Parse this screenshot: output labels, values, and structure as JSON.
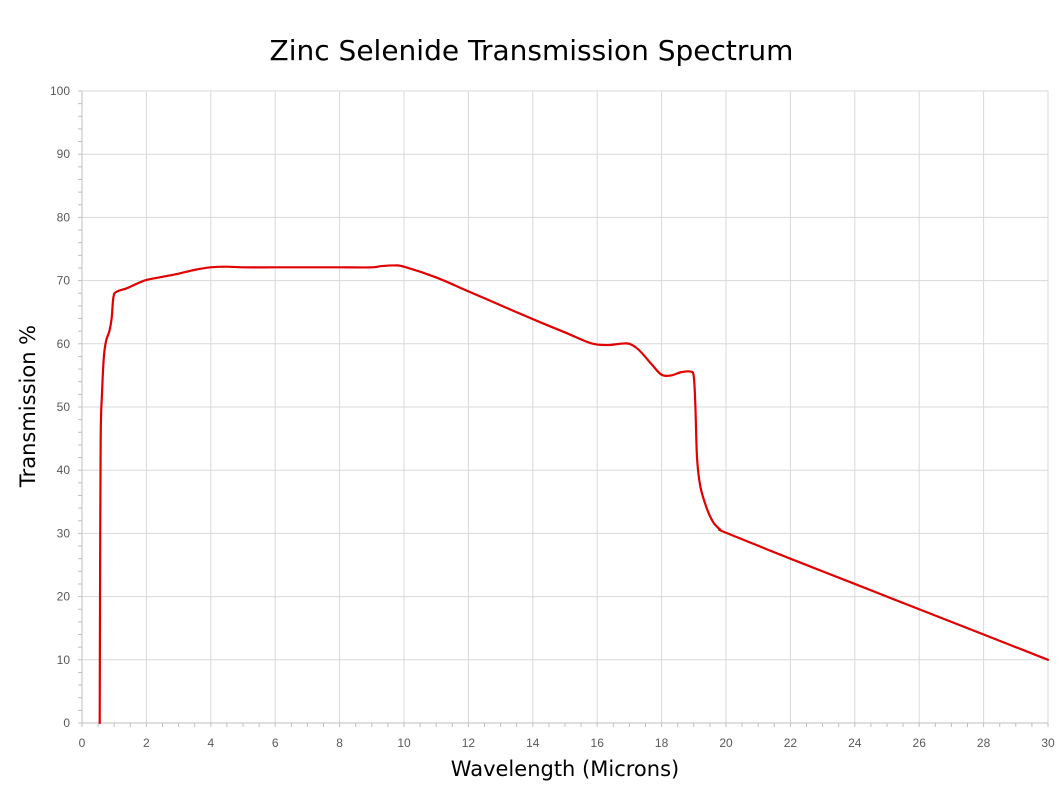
{
  "chart_data": {
    "type": "line",
    "title": "Zinc Selenide Transmission Spectrum",
    "xlabel": "Wavelength (Microns)",
    "ylabel": "Transmission %",
    "xlim": [
      0,
      30
    ],
    "ylim": [
      0,
      100
    ],
    "x_ticks": [
      "0",
      "2",
      "4",
      "6",
      "8",
      "10",
      "12",
      "14",
      "16",
      "18",
      "20",
      "22",
      "24",
      "26",
      "28",
      "30"
    ],
    "y_ticks": [
      "0",
      "10",
      "20",
      "30",
      "40",
      "50",
      "60",
      "70",
      "80",
      "90",
      "100"
    ],
    "grid": true,
    "legend": "none",
    "series": [
      {
        "color": "#e00000",
        "points": [
          [
            0.55,
            0
          ],
          [
            0.56,
            20
          ],
          [
            0.58,
            45
          ],
          [
            0.62,
            52
          ],
          [
            0.68,
            58
          ],
          [
            0.75,
            60.5
          ],
          [
            0.85,
            62
          ],
          [
            0.92,
            64
          ],
          [
            0.98,
            67.5
          ],
          [
            1.1,
            68.3
          ],
          [
            1.4,
            68.8
          ],
          [
            1.7,
            69.5
          ],
          [
            2.0,
            70.1
          ],
          [
            2.5,
            70.6
          ],
          [
            3.0,
            71.1
          ],
          [
            3.5,
            71.7
          ],
          [
            4.0,
            72.1
          ],
          [
            4.5,
            72.2
          ],
          [
            5.0,
            72.1
          ],
          [
            6.0,
            72.1
          ],
          [
            7.0,
            72.1
          ],
          [
            8.0,
            72.1
          ],
          [
            9.0,
            72.1
          ],
          [
            9.3,
            72.3
          ],
          [
            9.7,
            72.4
          ],
          [
            10.0,
            72.2
          ],
          [
            11.0,
            70.5
          ],
          [
            12.0,
            68.3
          ],
          [
            13.0,
            66.1
          ],
          [
            14.0,
            63.9
          ],
          [
            15.0,
            61.8
          ],
          [
            15.8,
            60.1
          ],
          [
            16.3,
            59.8
          ],
          [
            16.7,
            60.0
          ],
          [
            17.0,
            60.0
          ],
          [
            17.3,
            59.0
          ],
          [
            17.7,
            56.7
          ],
          [
            18.0,
            55.1
          ],
          [
            18.3,
            55.0
          ],
          [
            18.6,
            55.5
          ],
          [
            18.9,
            55.6
          ],
          [
            19.0,
            54.8
          ],
          [
            19.05,
            50.0
          ],
          [
            19.1,
            42.0
          ],
          [
            19.2,
            37.5
          ],
          [
            19.4,
            34.0
          ],
          [
            19.6,
            31.8
          ],
          [
            19.8,
            30.7
          ],
          [
            20.0,
            30.1
          ],
          [
            22.0,
            26.0
          ],
          [
            24.0,
            22.0
          ],
          [
            26.0,
            18.0
          ],
          [
            28.0,
            14.0
          ],
          [
            30.0,
            10.0
          ]
        ]
      }
    ]
  }
}
